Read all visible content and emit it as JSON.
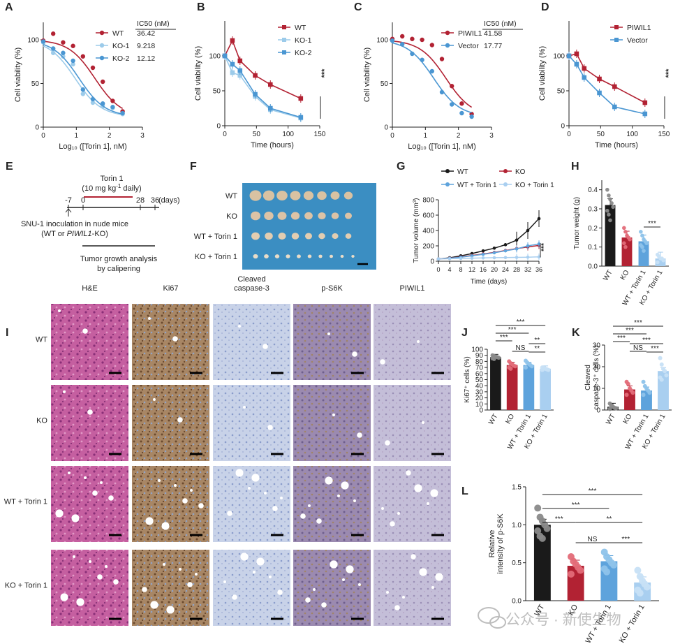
{
  "colors": {
    "wt": "#b22233",
    "ko1": "#9ccbea",
    "ko2": "#4a96d2",
    "torin": "#5ea3dc",
    "black": "#1a1a1a",
    "light": "#a9cff0"
  },
  "panels": {
    "A": {
      "label": "A",
      "ylabel": "Cell viability (%)",
      "xlabel": "Log₁₀ ([Torin 1], nM)",
      "ic50_header": "IC50 (nM)",
      "yticks": [
        "0",
        "50",
        "100"
      ],
      "xticks": [
        "0",
        "1",
        "2",
        "3"
      ],
      "legend": [
        {
          "name": "WT",
          "ic50": "36.42",
          "color": "#b22233"
        },
        {
          "name": "KO-1",
          "ic50": "9.218",
          "color": "#9ccbea"
        },
        {
          "name": "KO-2",
          "ic50": "12.12",
          "color": "#4a96d2"
        }
      ]
    },
    "B": {
      "label": "B",
      "ylabel": "Cell viability (%)",
      "xlabel": "Time (hours)",
      "yticks": [
        "0",
        "50",
        "100"
      ],
      "xticks": [
        "0",
        "50",
        "100",
        "150"
      ],
      "legend": [
        {
          "name": "WT",
          "color": "#b22233"
        },
        {
          "name": "KO-1",
          "color": "#9ccbea"
        },
        {
          "name": "KO-2",
          "color": "#4a96d2"
        }
      ],
      "sig": "***"
    },
    "C": {
      "label": "C",
      "ylabel": "Cell viability (%)",
      "xlabel": "Log₁₀ ([Torin 1], nM)",
      "ic50_header": "IC50 (nM)",
      "yticks": [
        "0",
        "50",
        "100"
      ],
      "xticks": [
        "0",
        "1",
        "2",
        "3"
      ],
      "legend": [
        {
          "name": "PIWIL1",
          "ic50": "41.58",
          "color": "#b22233"
        },
        {
          "name": "Vector",
          "ic50": "17.77",
          "color": "#4a96d2"
        }
      ]
    },
    "D": {
      "label": "D",
      "ylabel": "Cell viability (%)",
      "xlabel": "Time (hours)",
      "yticks": [
        "0",
        "50",
        "100"
      ],
      "xticks": [
        "0",
        "50",
        "100",
        "150"
      ],
      "legend": [
        {
          "name": "PIWIL1",
          "color": "#b22233"
        },
        {
          "name": "Vector",
          "color": "#4a96d2"
        }
      ],
      "sig": "***"
    },
    "E": {
      "label": "E",
      "torin": "Torin 1",
      "dose_a": "(10 mg kg",
      "dose_sup": "-1",
      "dose_b": " daily)",
      "ticks": [
        "-7",
        "0",
        "28",
        "36"
      ],
      "days": "(days)",
      "inoc": "SNU-1 inoculation in nude mice",
      "inoc2_a": "(WT or ",
      "inoc2_i": "PIWIL1",
      "inoc2_b": "-KO)",
      "growth1": "Tumor growth analysis",
      "growth2": "by calipering"
    },
    "F": {
      "label": "F",
      "rows": [
        "WT",
        "KO",
        "WT + Torin 1",
        "KO + Torin 1"
      ]
    },
    "G": {
      "label": "G",
      "ylabel": "Tumor volume (mm³)",
      "xlabel": "Time (days)",
      "yticks": [
        "0",
        "200",
        "400",
        "600",
        "800"
      ],
      "xticks": [
        "0",
        "4",
        "8",
        "12",
        "16",
        "20",
        "24",
        "28",
        "32",
        "36"
      ],
      "legend": [
        {
          "name": "WT",
          "color": "#1a1a1a"
        },
        {
          "name": "KO",
          "color": "#b22233"
        },
        {
          "name": "WT + Torin 1",
          "color": "#5ea3dc"
        },
        {
          "name": "KO + Torin 1",
          "color": "#a9cff0"
        }
      ],
      "sig": "***"
    },
    "H": {
      "label": "H",
      "ylabel": "Tumor weight (g)",
      "yticks": [
        "0.0",
        "0.1",
        "0.2",
        "0.3",
        "0.4"
      ],
      "categories": [
        "WT",
        "KO",
        "WT + Torin 1",
        "KO + Torin 1"
      ],
      "sig": "***"
    },
    "I": {
      "label": "I",
      "cols": [
        "H&E",
        "Ki67",
        "Cleaved\ncaspase-3",
        "p-S6K",
        "PIWIL1"
      ],
      "rows": [
        "WT",
        "KO",
        "WT + Torin 1",
        "KO + Torin 1"
      ]
    },
    "J": {
      "label": "J",
      "ylabel": "Ki67⁺ cells (%)",
      "yticks": [
        "0",
        "10",
        "20",
        "30",
        "40",
        "50",
        "60",
        "70",
        "80",
        "90",
        "100"
      ],
      "categories": [
        "WT",
        "KO",
        "WT + Torin 1",
        "KO + Torin 1"
      ],
      "sigs": [
        "***",
        "***",
        "***",
        "**",
        "NS",
        "**"
      ]
    },
    "K": {
      "label": "K",
      "ylabel1": "Cleaved",
      "ylabel2": "caspase-3⁺ cells (%)",
      "yticks": [
        "0",
        "10",
        "20",
        "30"
      ],
      "categories": [
        "WT",
        "KO",
        "WT + Torin 1",
        "KO + Torin 1"
      ],
      "sigs": [
        "***",
        "***",
        "***",
        "***",
        "NS",
        "***"
      ]
    },
    "L": {
      "label": "L",
      "ylabel1": "Relative",
      "ylabel2": "intensity of p-S6K",
      "yticks": [
        "0.0",
        "0.5",
        "1.0",
        "1.5"
      ],
      "categories": [
        "WT",
        "KO",
        "WT + Torin 1",
        "KO + Torin 1"
      ],
      "sigs": [
        "***",
        "***",
        "***",
        "**",
        "NS",
        "***"
      ]
    }
  },
  "watermark": "公众号 · 新使生物",
  "chart_data": [
    {
      "id": "A",
      "type": "scatter",
      "xlabel": "Log₁₀ ([Torin 1], nM)",
      "ylabel": "Cell viability (%)",
      "xlim": [
        0,
        3
      ],
      "ylim": [
        0,
        120
      ],
      "series": [
        {
          "name": "WT",
          "ic50": 36.42,
          "x": [
            0,
            0.3,
            0.6,
            0.9,
            1.2,
            1.5,
            1.8,
            2.1,
            2.4
          ],
          "y": [
            99,
            107,
            97,
            93,
            81,
            68,
            52,
            30,
            18
          ],
          "fit_log_ic50": 1.56
        },
        {
          "name": "KO-1",
          "ic50": 9.218,
          "x": [
            0,
            0.3,
            0.6,
            0.9,
            1.2,
            1.5,
            1.8,
            2.1,
            2.4
          ],
          "y": [
            97,
            85,
            81,
            72,
            38,
            28,
            24,
            22,
            15
          ],
          "fit_log_ic50": 0.96
        },
        {
          "name": "KO-2",
          "ic50": 12.12,
          "x": [
            0,
            0.3,
            0.6,
            0.9,
            1.2,
            1.5,
            1.8,
            2.1,
            2.4
          ],
          "y": [
            98,
            90,
            85,
            76,
            43,
            32,
            27,
            23,
            16
          ],
          "fit_log_ic50": 1.08
        }
      ]
    },
    {
      "id": "B",
      "type": "line",
      "xlabel": "Time (hours)",
      "ylabel": "Cell viability (%)",
      "xlim": [
        0,
        150
      ],
      "ylim": [
        0,
        150
      ],
      "x": [
        0,
        12,
        24,
        48,
        72,
        120
      ],
      "series": [
        {
          "name": "WT",
          "values": [
            100,
            122,
            93,
            72,
            59,
            39
          ]
        },
        {
          "name": "KO-1",
          "values": [
            100,
            76,
            72,
            42,
            23,
            11
          ]
        },
        {
          "name": "KO-2",
          "values": [
            100,
            88,
            79,
            45,
            25,
            12
          ]
        }
      ]
    },
    {
      "id": "C",
      "type": "scatter",
      "xlabel": "Log₁₀ ([Torin 1], nM)",
      "ylabel": "Cell viability (%)",
      "xlim": [
        0,
        3
      ],
      "ylim": [
        0,
        120
      ],
      "series": [
        {
          "name": "PIWIL1",
          "ic50": 41.58,
          "x": [
            0,
            0.3,
            0.6,
            0.9,
            1.2,
            1.5,
            1.8,
            2.1,
            2.4
          ],
          "y": [
            101,
            104,
            101,
            100,
            94,
            78,
            47,
            27,
            15
          ],
          "fit_log_ic50": 1.62
        },
        {
          "name": "Vector",
          "ic50": 17.77,
          "x": [
            0,
            0.3,
            0.6,
            0.9,
            1.2,
            1.5,
            1.8,
            2.1,
            2.4
          ],
          "y": [
            99,
            95,
            84,
            77,
            64,
            40,
            26,
            16,
            12
          ],
          "fit_log_ic50": 1.25
        }
      ]
    },
    {
      "id": "D",
      "type": "line",
      "xlabel": "Time (hours)",
      "ylabel": "Cell viability (%)",
      "xlim": [
        0,
        150
      ],
      "ylim": [
        0,
        150
      ],
      "x": [
        0,
        12,
        24,
        48,
        72,
        120
      ],
      "series": [
        {
          "name": "PIWIL1",
          "values": [
            100,
            103,
            82,
            67,
            56,
            33
          ]
        },
        {
          "name": "Vector",
          "values": [
            100,
            88,
            69,
            47,
            27,
            17
          ]
        }
      ]
    },
    {
      "id": "G",
      "type": "line",
      "xlabel": "Time (days)",
      "ylabel": "Tumor volume (mm³)",
      "xlim": [
        0,
        36
      ],
      "ylim": [
        0,
        800
      ],
      "x": [
        0,
        4,
        8,
        12,
        16,
        20,
        24,
        28,
        32,
        36
      ],
      "series": [
        {
          "name": "WT",
          "values": [
            30,
            45,
            70,
            100,
            135,
            170,
            215,
            275,
            400,
            555
          ]
        },
        {
          "name": "KO",
          "values": [
            30,
            40,
            55,
            75,
            95,
            115,
            140,
            165,
            185,
            205
          ]
        },
        {
          "name": "WT + Torin 1",
          "values": [
            30,
            38,
            52,
            70,
            90,
            110,
            135,
            160,
            200,
            225
          ]
        },
        {
          "name": "KO + Torin 1",
          "values": [
            30,
            33,
            36,
            40,
            43,
            46,
            48,
            50,
            53,
            56
          ]
        }
      ]
    },
    {
      "id": "H",
      "type": "bar",
      "ylabel": "Tumor weight (g)",
      "ylim": [
        0,
        0.45
      ],
      "categories": [
        "WT",
        "KO",
        "WT + Torin 1",
        "KO + Torin 1"
      ],
      "values": [
        0.32,
        0.15,
        0.13,
        0.04
      ],
      "points": [
        [
          0.4,
          0.37,
          0.35,
          0.33,
          0.31,
          0.29,
          0.27,
          0.24
        ],
        [
          0.2,
          0.18,
          0.16,
          0.15,
          0.14,
          0.12,
          0.1
        ],
        [
          0.18,
          0.16,
          0.14,
          0.13,
          0.12,
          0.11,
          0.1,
          0.08
        ],
        [
          0.06,
          0.05,
          0.04,
          0.04,
          0.03,
          0.02
        ]
      ]
    },
    {
      "id": "J",
      "type": "bar",
      "ylabel": "Ki67⁺ cells (%)",
      "ylim": [
        0,
        100
      ],
      "categories": [
        "WT",
        "KO",
        "WT + Torin 1",
        "KO + Torin 1"
      ],
      "values": [
        87,
        74,
        74,
        68
      ],
      "points": [
        [
          90,
          89,
          88,
          87,
          86,
          85,
          84
        ],
        [
          80,
          77,
          75,
          73,
          72,
          70,
          68
        ],
        [
          81,
          78,
          76,
          74,
          72,
          70
        ],
        [
          70,
          69,
          68,
          67,
          66,
          66
        ]
      ]
    },
    {
      "id": "K",
      "type": "bar",
      "ylabel": "Cleaved caspase-3⁺ cells (%)",
      "ylim": [
        0,
        30
      ],
      "categories": [
        "WT",
        "KO",
        "WT + Torin 1",
        "KO + Torin 1"
      ],
      "values": [
        1.5,
        9.5,
        9.0,
        18.0
      ],
      "points": [
        [
          3,
          2,
          1.5,
          1,
          0.8,
          0.5
        ],
        [
          13,
          12,
          10,
          9,
          8,
          7
        ],
        [
          13,
          11,
          10,
          9,
          8,
          7
        ],
        [
          24,
          21,
          19,
          18,
          16,
          15,
          14
        ]
      ]
    },
    {
      "id": "L",
      "type": "bar",
      "ylabel": "Relative intensity of p-S6K",
      "ylim": [
        0,
        1.5
      ],
      "categories": [
        "WT",
        "KO",
        "WT + Torin 1",
        "KO + Torin 1"
      ],
      "values": [
        1.0,
        0.46,
        0.52,
        0.24
      ],
      "points": [
        [
          1.22,
          1.1,
          1.05,
          1.0,
          0.95,
          0.92,
          0.85,
          0.82
        ],
        [
          0.58,
          0.52,
          0.48,
          0.44,
          0.4,
          0.35
        ],
        [
          0.64,
          0.58,
          0.54,
          0.5,
          0.47,
          0.42,
          0.38
        ],
        [
          0.4,
          0.32,
          0.26,
          0.22,
          0.18,
          0.14,
          0.1
        ]
      ]
    }
  ]
}
